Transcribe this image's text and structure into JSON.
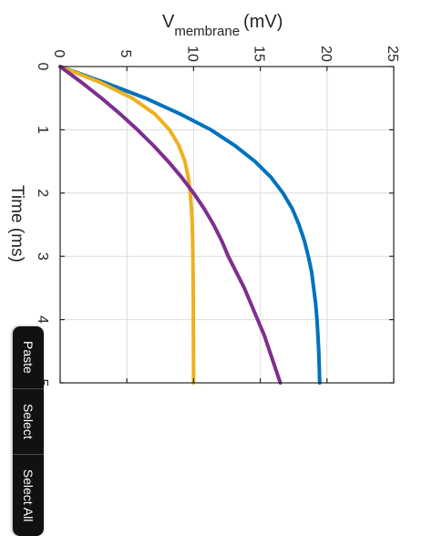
{
  "chart_data": {
    "type": "line",
    "title": "",
    "ylabel_main": "V",
    "ylabel_sub": "membrane",
    "ylabel_unit": "(mV)",
    "xlabel": "Time (ms)",
    "xlim": [
      0,
      5
    ],
    "ylim": [
      0,
      25
    ],
    "x_ticks": [
      0,
      1,
      2,
      3,
      4,
      5
    ],
    "y_ticks": [
      0,
      5,
      10,
      15,
      20,
      25
    ],
    "grid": true,
    "orientation": "rotated 90 degrees clockwise (time runs downward, voltage runs rightward)",
    "series": [
      {
        "color": "#0072BD",
        "x": [
          0,
          0.25,
          0.5,
          0.75,
          1,
          1.25,
          1.5,
          1.75,
          2,
          2.25,
          2.5,
          2.75,
          3,
          3.25,
          3.5,
          3.75,
          4,
          4.25,
          4.5,
          4.75,
          5
        ],
        "y": [
          0,
          3.3,
          6.4,
          9.0,
          11.3,
          13.1,
          14.6,
          15.8,
          16.7,
          17.4,
          17.9,
          18.3,
          18.6,
          18.85,
          19.0,
          19.15,
          19.25,
          19.32,
          19.38,
          19.42,
          19.45
        ]
      },
      {
        "color": "#EDB120",
        "x": [
          0,
          0.25,
          0.5,
          0.75,
          1,
          1.25,
          1.5,
          1.75,
          2,
          2.25,
          2.5,
          2.75,
          3,
          3.25,
          3.5,
          3.75,
          4,
          4.25,
          4.5,
          4.75,
          5
        ],
        "y": [
          0,
          3.0,
          5.4,
          7.1,
          8.2,
          8.9,
          9.35,
          9.6,
          9.75,
          9.84,
          9.9,
          9.93,
          9.95,
          9.96,
          9.97,
          9.98,
          9.98,
          9.99,
          9.99,
          10.0,
          10.0
        ]
      },
      {
        "color": "#7E2F8E",
        "x": [
          0,
          0.25,
          0.5,
          0.75,
          1,
          1.25,
          1.5,
          1.75,
          2,
          2.25,
          2.5,
          2.75,
          3,
          3.25,
          3.5,
          3.75,
          4,
          4.25,
          4.5,
          4.75,
          5
        ],
        "y": [
          0,
          1.6,
          3.1,
          4.5,
          5.8,
          7.0,
          8.1,
          9.1,
          10.0,
          10.8,
          11.5,
          12.1,
          12.6,
          13.2,
          13.8,
          14.3,
          14.8,
          15.3,
          15.7,
          16.1,
          16.5
        ]
      }
    ]
  },
  "edit_menu": {
    "items": [
      "Paste",
      "Select",
      "Select All"
    ]
  },
  "colors": {
    "axis": "#262626",
    "grid": "#dcdcdc"
  }
}
